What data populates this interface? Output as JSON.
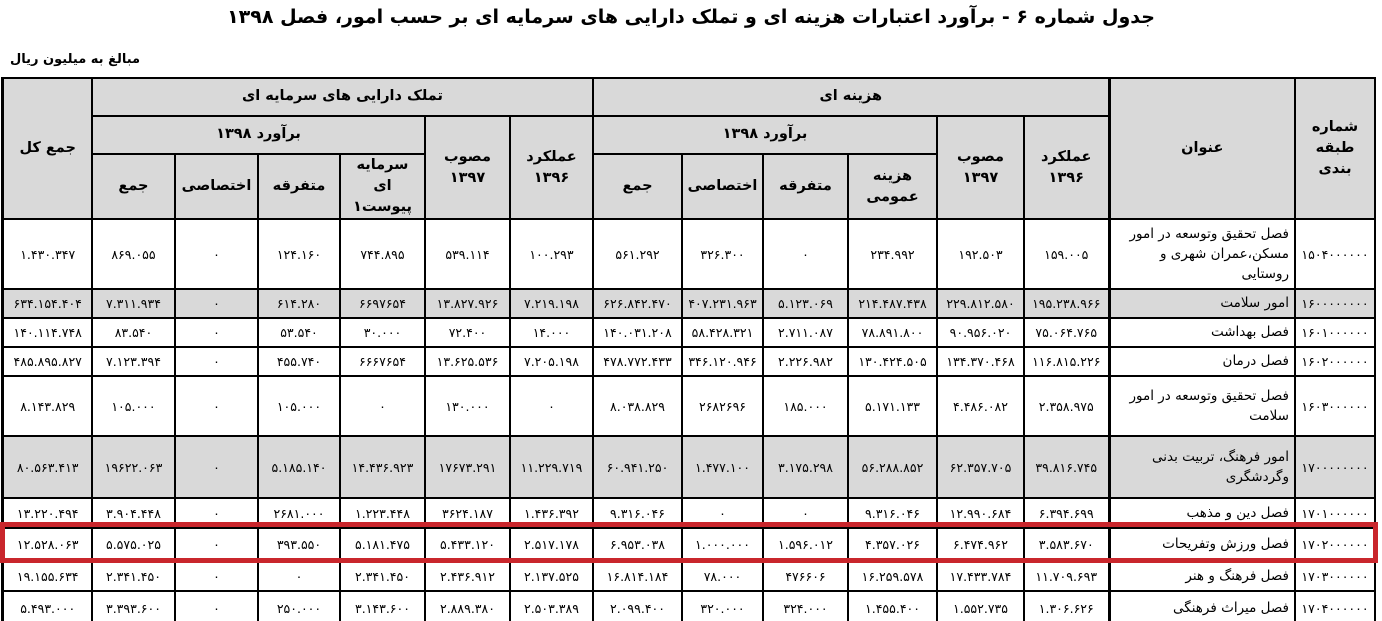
{
  "title": "جدول شماره ۶ - برآورد اعتبارات هزینه ای و تملک دارایی های سرمایه ای بر حسب امور، فصل ۱۳۹۸",
  "note": "مبالغ به میلیون ریال",
  "header": {
    "code_col": "شماره\nطبقه بندی",
    "title_col": "عنوان",
    "expense_group": "هزینه ای",
    "capital_group": "تملک دارایی های سرمایه ای",
    "estimate_1398": "برآورد ۱۳۹۸",
    "approved_1397": "مصوب\n۱۳۹۷",
    "performance_1396": "عملکرد\n۱۳۹۶",
    "sum": "جمع",
    "dedicated": "اختصاصی",
    "miscellaneous": "متفرقه",
    "general_expense": "هزینه\nعمومی",
    "capital_attachment1": "سرمایه ای\nپیوست۱",
    "grand_total": "جمع کل"
  },
  "colors": {
    "highlight": "#c9262c",
    "header_bg": "#d9d9d9"
  },
  "table": {
    "rows": [
      {
        "code": "۱۵۰۴۰۰۰۰۰۰",
        "title": "فصل تحقیق وتوسعه در امور مسکن،عمران شهری و روستایی",
        "section": false,
        "highlighted": false,
        "e_amalkard": "۱۵۹.۰۰۵",
        "e_mosavab": "۱۹۲.۵۰۳",
        "e_omumi": "۲۳۴.۹۹۲",
        "e_motefarreqe": "۰",
        "e_ekhtesasi": "۳۲۶.۳۰۰",
        "e_jam": "۵۶۱.۲۹۲",
        "c_amalkard": "۱۰۰.۲۹۳",
        "c_mosavab": "۵۳۹.۱۱۴",
        "c_sarmaye": "۷۴۴.۸۹۵",
        "c_motefarreqe": "۱۲۴.۱۶۰",
        "c_ekhtesasi": "۰",
        "c_jam": "۸۶۹.۰۵۵",
        "total": "۱.۴۳۰.۳۴۷"
      },
      {
        "code": "۱۶۰۰۰۰۰۰۰۰",
        "title": "امور سلامت",
        "section": true,
        "highlighted": false,
        "e_amalkard": "۱۹۵.۲۳۸.۹۶۶",
        "e_mosavab": "۲۲۹.۸۱۲.۵۸۰",
        "e_omumi": "۲۱۴.۴۸۷.۴۳۸",
        "e_motefarreqe": "۵.۱۲۳.۰۶۹",
        "e_ekhtesasi": "۴۰۷.۲۳۱.۹۶۳",
        "e_jam": "۶۲۶.۸۴۲.۴۷۰",
        "c_amalkard": "۷.۲۱۹.۱۹۸",
        "c_mosavab": "۱۳.۸۲۷.۹۲۶",
        "c_sarmaye": "۶۶۹۷۶۵۴",
        "c_motefarreqe": "۶۱۴.۲۸۰",
        "c_ekhtesasi": "۰",
        "c_jam": "۷.۳۱۱.۹۳۴",
        "total": "۶۳۴.۱۵۴.۴۰۴"
      },
      {
        "code": "۱۶۰۱۰۰۰۰۰۰",
        "title": "فصل بهداشت",
        "section": false,
        "highlighted": false,
        "e_amalkard": "۷۵.۰۶۴.۷۶۵",
        "e_mosavab": "۹۰.۹۵۶.۰۲۰",
        "e_omumi": "۷۸.۸۹۱.۸۰۰",
        "e_motefarreqe": "۲.۷۱۱.۰۸۷",
        "e_ekhtesasi": "۵۸.۴۲۸.۳۲۱",
        "e_jam": "۱۴۰.۰۳۱.۲۰۸",
        "c_amalkard": "۱۴.۰۰۰",
        "c_mosavab": "۷۲.۴۰۰",
        "c_sarmaye": "۳۰.۰۰۰",
        "c_motefarreqe": "۵۳.۵۴۰",
        "c_ekhtesasi": "۰",
        "c_jam": "۸۳.۵۴۰",
        "total": "۱۴۰.۱۱۴.۷۴۸"
      },
      {
        "code": "۱۶۰۲۰۰۰۰۰۰",
        "title": "فصل درمان",
        "section": false,
        "highlighted": false,
        "e_amalkard": "۱۱۶.۸۱۵.۲۲۶",
        "e_mosavab": "۱۳۴.۳۷۰.۴۶۸",
        "e_omumi": "۱۳۰.۴۲۴.۵۰۵",
        "e_motefarreqe": "۲.۲۲۶.۹۸۲",
        "e_ekhtesasi": "۳۴۶.۱۲۰.۹۴۶",
        "e_jam": "۴۷۸.۷۷۲.۴۳۳",
        "c_amalkard": "۷.۲۰۵.۱۹۸",
        "c_mosavab": "۱۳.۶۲۵.۵۳۶",
        "c_sarmaye": "۶۶۶۷۶۵۴",
        "c_motefarreqe": "۴۵۵.۷۴۰",
        "c_ekhtesasi": "۰",
        "c_jam": "۷.۱۲۳.۳۹۴",
        "total": "۴۸۵.۸۹۵.۸۲۷"
      },
      {
        "code": "۱۶۰۳۰۰۰۰۰۰",
        "title": "فصل تحقیق وتوسعه در امور سلامت",
        "section": false,
        "highlighted": false,
        "e_amalkard": "۲.۳۵۸.۹۷۵",
        "e_mosavab": "۴.۴۸۶.۰۸۲",
        "e_omumi": "۵.۱۷۱.۱۳۳",
        "e_motefarreqe": "۱۸۵.۰۰۰",
        "e_ekhtesasi": "۲۶۸۲۶۹۶",
        "e_jam": "۸.۰۳۸.۸۲۹",
        "c_amalkard": "۰",
        "c_mosavab": "۱۳۰.۰۰۰",
        "c_sarmaye": "۰",
        "c_motefarreqe": "۱۰۵.۰۰۰",
        "c_ekhtesasi": "۰",
        "c_jam": "۱۰۵.۰۰۰",
        "total": "۸.۱۴۳.۸۲۹"
      },
      {
        "code": "۱۷۰۰۰۰۰۰۰۰",
        "title": "امور فرهنگ، تربیت بدنی وگردشگری",
        "section": true,
        "highlighted": false,
        "e_amalkard": "۳۹.۸۱۶.۷۴۵",
        "e_mosavab": "۶۲.۳۵۷.۷۰۵",
        "e_omumi": "۵۶.۲۸۸.۸۵۲",
        "e_motefarreqe": "۳.۱۷۵.۲۹۸",
        "e_ekhtesasi": "۱.۴۷۷.۱۰۰",
        "e_jam": "۶۰.۹۴۱.۲۵۰",
        "c_amalkard": "۱۱.۲۲۹.۷۱۹",
        "c_mosavab": "۱۷۶۷۳.۲۹۱",
        "c_sarmaye": "۱۴.۴۳۶.۹۲۳",
        "c_motefarreqe": "۵.۱۸۵.۱۴۰",
        "c_ekhtesasi": "۰",
        "c_jam": "۱۹۶۲۲.۰۶۳",
        "total": "۸۰.۵۶۳.۴۱۳"
      },
      {
        "code": "۱۷۰۱۰۰۰۰۰۰",
        "title": "فصل دین و مذهب",
        "section": false,
        "highlighted": false,
        "e_amalkard": "۶.۳۹۴.۶۹۹",
        "e_mosavab": "۱۲.۹۹۰.۶۸۴",
        "e_omumi": "۹.۳۱۶.۰۴۶",
        "e_motefarreqe": "۰",
        "e_ekhtesasi": "۰",
        "e_jam": "۹.۳۱۶.۰۴۶",
        "c_amalkard": "۱.۴۳۶.۳۹۲",
        "c_mosavab": "۳۶۲۴.۱۸۷",
        "c_sarmaye": "۱.۲۲۳.۴۴۸",
        "c_motefarreqe": "۲۶۸۱.۰۰۰",
        "c_ekhtesasi": "۰",
        "c_jam": "۳.۹۰۴.۴۴۸",
        "total": "۱۳.۲۲۰.۴۹۴"
      },
      {
        "code": "۱۷۰۲۰۰۰۰۰۰",
        "title": "فصل ورزش وتفریحات",
        "section": false,
        "highlighted": true,
        "e_amalkard": "۳.۵۸۳.۶۷۰",
        "e_mosavab": "۶.۴۷۴.۹۶۲",
        "e_omumi": "۴.۳۵۷.۰۲۶",
        "e_motefarreqe": "۱.۵۹۶.۰۱۲",
        "e_ekhtesasi": "۱.۰۰۰.۰۰۰",
        "e_jam": "۶.۹۵۳.۰۳۸",
        "c_amalkard": "۲.۵۱۷.۱۷۸",
        "c_mosavab": "۵.۴۳۳.۱۲۰",
        "c_sarmaye": "۵.۱۸۱.۴۷۵",
        "c_motefarreqe": "۳۹۳.۵۵۰",
        "c_ekhtesasi": "۰",
        "c_jam": "۵.۵۷۵.۰۲۵",
        "total": "۱۲.۵۲۸.۰۶۳"
      },
      {
        "code": "۱۷۰۳۰۰۰۰۰۰",
        "title": "فصل فرهنگ و هنر",
        "section": false,
        "highlighted": false,
        "e_amalkard": "۱۱.۷۰۹.۶۹۳",
        "e_mosavab": "۱۷.۴۳۳.۷۸۴",
        "e_omumi": "۱۶.۲۵۹.۵۷۸",
        "e_motefarreqe": "۴۷۶۶۰۶",
        "e_ekhtesasi": "۷۸.۰۰۰",
        "e_jam": "۱۶.۸۱۴.۱۸۴",
        "c_amalkard": "۲.۱۳۷.۵۲۵",
        "c_mosavab": "۲.۴۳۶.۹۱۲",
        "c_sarmaye": "۲.۳۴۱.۴۵۰",
        "c_motefarreqe": "۰",
        "c_ekhtesasi": "۰",
        "c_jam": "۲.۳۴۱.۴۵۰",
        "total": "۱۹.۱۵۵.۶۳۴"
      },
      {
        "code": "۱۷۰۴۰۰۰۰۰۰",
        "title": "فصل میراث فرهنگی",
        "section": false,
        "highlighted": false,
        "e_amalkard": "۱.۳۰۶.۶۲۶",
        "e_mosavab": "۱.۵۵۲.۷۳۵",
        "e_omumi": "۱.۴۵۵.۴۰۰",
        "e_motefarreqe": "۳۲۴.۰۰۰",
        "e_ekhtesasi": "۳۲۰.۰۰۰",
        "e_jam": "۲.۰۹۹.۴۰۰",
        "c_amalkard": "۲.۵۰۳.۳۸۹",
        "c_mosavab": "۲.۸۸۹.۳۸۰",
        "c_sarmaye": "۳.۱۴۳.۶۰۰",
        "c_motefarreqe": "۲۵۰.۰۰۰",
        "c_ekhtesasi": "۰",
        "c_jam": "۳.۳۹۳.۶۰۰",
        "total": "۵.۴۹۳.۰۰۰"
      }
    ]
  }
}
